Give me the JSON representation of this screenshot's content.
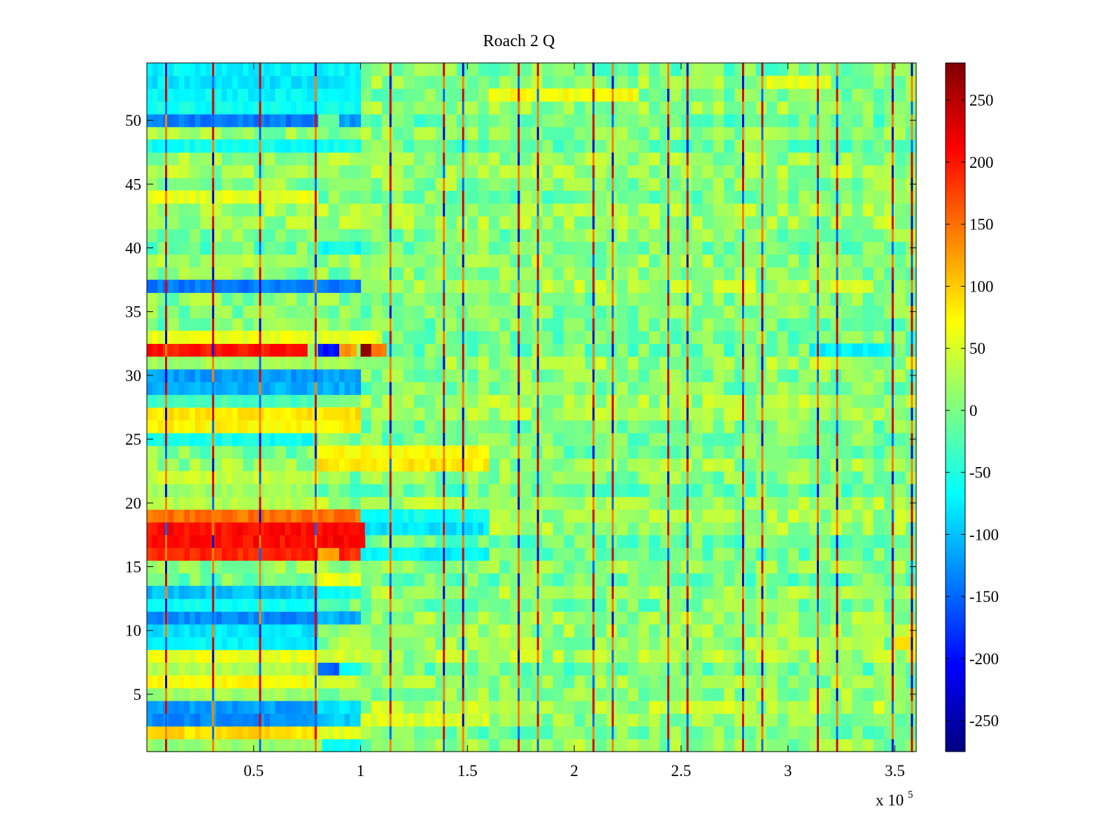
{
  "chart_data": {
    "type": "heatmap",
    "title": "Roach 2 Q",
    "xlabel": "",
    "ylabel": "",
    "x_multiplier_label": "x 10",
    "x_multiplier_exponent": "5",
    "xlim": [
      0,
      3.6
    ],
    "ylim": [
      0.5,
      54.5
    ],
    "x_ticks": [
      0.5,
      1,
      1.5,
      2,
      2.5,
      3,
      3.5
    ],
    "x_tick_labels": [
      "0.5",
      "1",
      "1.5",
      "2",
      "2.5",
      "3",
      "3.5"
    ],
    "y_ticks": [
      5,
      10,
      15,
      20,
      25,
      30,
      35,
      40,
      45,
      50
    ],
    "y_tick_labels": [
      "5",
      "10",
      "15",
      "20",
      "25",
      "30",
      "35",
      "40",
      "45",
      "50"
    ],
    "colormap": "jet",
    "colorbar": {
      "range": [
        -275,
        280
      ],
      "ticks": [
        250,
        200,
        150,
        100,
        50,
        0,
        -50,
        -100,
        -150,
        -200,
        -250
      ],
      "tick_labels": [
        "250",
        "200",
        "150",
        "100",
        "50",
        "0",
        "-50",
        "-100",
        "-150",
        "-200",
        "-250"
      ]
    },
    "spike_columns_x": [
      0.09,
      0.31,
      0.53,
      0.79,
      1.14,
      1.39,
      1.48,
      1.74,
      1.83,
      2.09,
      2.18,
      2.44,
      2.53,
      2.79,
      2.88,
      3.14,
      3.23,
      3.49,
      3.58
    ],
    "row_segments": [
      {
        "row": 1,
        "x0": 0,
        "x1": 0.82,
        "value": 15
      },
      {
        "row": 1,
        "x0": 0.82,
        "x1": 1.0,
        "value": -60
      },
      {
        "row": 2,
        "x0": 0,
        "x1": 0.8,
        "value": 90
      },
      {
        "row": 2,
        "x0": 0.8,
        "x1": 1.0,
        "value": 60
      },
      {
        "row": 3,
        "x0": 0,
        "x1": 0.8,
        "value": -130
      },
      {
        "row": 3,
        "x0": 0.8,
        "x1": 1.0,
        "value": -90
      },
      {
        "row": 3,
        "x0": 1.0,
        "x1": 1.6,
        "value": 50
      },
      {
        "row": 4,
        "x0": 0,
        "x1": 0.8,
        "value": -120
      },
      {
        "row": 4,
        "x0": 0.8,
        "x1": 1.0,
        "value": -80
      },
      {
        "row": 5,
        "x0": 0,
        "x1": 0.8,
        "value": 20
      },
      {
        "row": 6,
        "x0": 0,
        "x1": 0.8,
        "value": 70
      },
      {
        "row": 6,
        "x0": 0.8,
        "x1": 1.0,
        "value": 40
      },
      {
        "row": 7,
        "x0": 0,
        "x1": 0.8,
        "value": 30
      },
      {
        "row": 7,
        "x0": 0.8,
        "x1": 0.9,
        "value": -150
      },
      {
        "row": 7,
        "x0": 0.9,
        "x1": 1.0,
        "value": -60
      },
      {
        "row": 8,
        "x0": 0,
        "x1": 0.8,
        "value": 60
      },
      {
        "row": 8,
        "x0": 0.8,
        "x1": 1.0,
        "value": 50
      },
      {
        "row": 9,
        "x0": 0,
        "x1": 0.8,
        "value": -70
      },
      {
        "row": 9,
        "x0": 3.5,
        "x1": 3.6,
        "value": 80
      },
      {
        "row": 10,
        "x0": 0,
        "x1": 0.8,
        "value": -80
      },
      {
        "row": 11,
        "x0": 0,
        "x1": 0.8,
        "value": -130
      },
      {
        "row": 11,
        "x0": 0.8,
        "x1": 1.0,
        "value": -110
      },
      {
        "row": 12,
        "x0": 0,
        "x1": 0.8,
        "value": -60
      },
      {
        "row": 13,
        "x0": 0,
        "x1": 0.8,
        "value": -100
      },
      {
        "row": 13,
        "x0": 0.8,
        "x1": 1.0,
        "value": -60
      },
      {
        "row": 14,
        "x0": 0.8,
        "x1": 1.0,
        "value": 60
      },
      {
        "row": 16,
        "x0": 0,
        "x1": 0.8,
        "value": 190
      },
      {
        "row": 16,
        "x0": 0.8,
        "x1": 0.9,
        "value": 120
      },
      {
        "row": 16,
        "x0": 0.9,
        "x1": 1.0,
        "value": 190
      },
      {
        "row": 16,
        "x0": 1.0,
        "x1": 1.6,
        "value": -70
      },
      {
        "row": 17,
        "x0": 0,
        "x1": 1.02,
        "value": 205
      },
      {
        "row": 18,
        "x0": 0,
        "x1": 1.02,
        "value": 205
      },
      {
        "row": 18,
        "x0": 1.02,
        "x1": 1.6,
        "value": -80
      },
      {
        "row": 19,
        "x0": 0,
        "x1": 1.0,
        "value": 150
      },
      {
        "row": 19,
        "x0": 1.0,
        "x1": 1.6,
        "value": -60
      },
      {
        "row": 20,
        "x0": 0,
        "x1": 0.8,
        "value": 30
      },
      {
        "row": 21,
        "x0": 0,
        "x1": 0.8,
        "value": 20
      },
      {
        "row": 22,
        "x0": 0,
        "x1": 0.8,
        "value": 40
      },
      {
        "row": 23,
        "x0": 0.8,
        "x1": 1.6,
        "value": 85
      },
      {
        "row": 24,
        "x0": 0.8,
        "x1": 1.6,
        "value": 70
      },
      {
        "row": 25,
        "x0": 0,
        "x1": 0.8,
        "value": -60
      },
      {
        "row": 26,
        "x0": 0,
        "x1": 1.0,
        "value": 75
      },
      {
        "row": 27,
        "x0": 0,
        "x1": 1.0,
        "value": 85
      },
      {
        "row": 28,
        "x0": 0,
        "x1": 0.8,
        "value": -30
      },
      {
        "row": 29,
        "x0": 0,
        "x1": 1.0,
        "value": -110
      },
      {
        "row": 30,
        "x0": 0,
        "x1": 1.0,
        "value": -120
      },
      {
        "row": 31,
        "x0": 0,
        "x1": 1.1,
        "value": 20
      },
      {
        "row": 32,
        "x0": 0,
        "x1": 0.75,
        "value": 200
      },
      {
        "row": 32,
        "x0": 0.8,
        "x1": 0.9,
        "value": -200
      },
      {
        "row": 32,
        "x0": 0.9,
        "x1": 0.98,
        "value": 130
      },
      {
        "row": 32,
        "x0": 1.0,
        "x1": 1.05,
        "value": 280
      },
      {
        "row": 32,
        "x0": 1.05,
        "x1": 1.12,
        "value": 150
      },
      {
        "row": 32,
        "x0": 3.1,
        "x1": 3.5,
        "value": -70
      },
      {
        "row": 33,
        "x0": 0,
        "x1": 1.1,
        "value": 60
      },
      {
        "row": 37,
        "x0": 0,
        "x1": 1.0,
        "value": -140
      },
      {
        "row": 40,
        "x0": 0.8,
        "x1": 1.0,
        "value": -60
      },
      {
        "row": 44,
        "x0": 0,
        "x1": 0.8,
        "value": 60
      },
      {
        "row": 48,
        "x0": 0,
        "x1": 1.0,
        "value": -60
      },
      {
        "row": 50,
        "x0": 0,
        "x1": 0.8,
        "value": -140
      },
      {
        "row": 50,
        "x0": 0.9,
        "x1": 1.0,
        "value": -120
      },
      {
        "row": 51,
        "x0": 0,
        "x1": 1.0,
        "value": -60
      },
      {
        "row": 52,
        "x0": 0,
        "x1": 1.0,
        "value": -70
      },
      {
        "row": 52,
        "x0": 1.6,
        "x1": 2.3,
        "value": 70
      },
      {
        "row": 53,
        "x0": 0,
        "x1": 1.0,
        "value": -80
      },
      {
        "row": 53,
        "x0": 2.9,
        "x1": 3.2,
        "value": 60
      },
      {
        "row": 54,
        "x0": 0,
        "x1": 1.0,
        "value": -70
      }
    ]
  }
}
